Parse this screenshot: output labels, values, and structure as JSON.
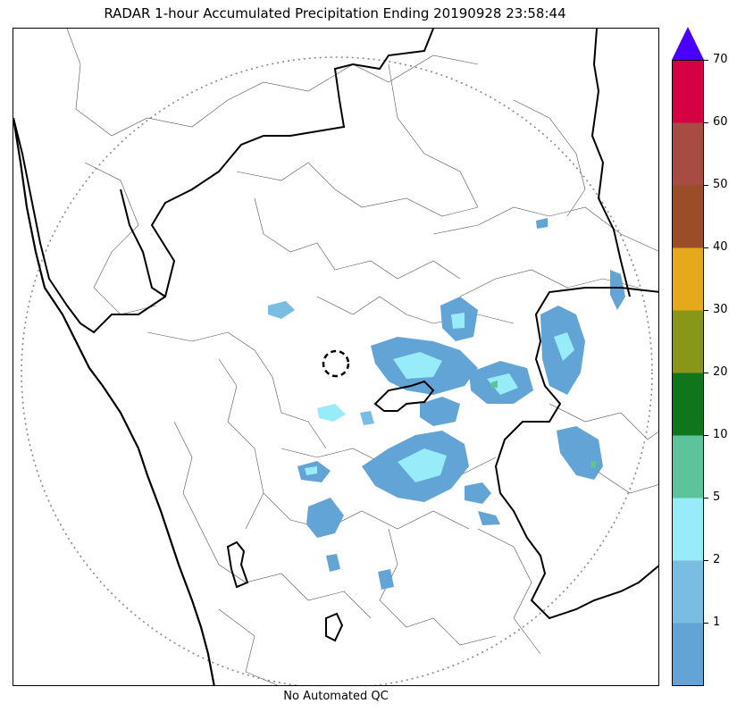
{
  "title": "RADAR 1-hour Accumulated Precipitation Ending 20190928 23:58:44",
  "footer": "No Automated QC",
  "colorbar": {
    "ticks": [
      "1",
      "2",
      "5",
      "10",
      "20",
      "30",
      "40",
      "50",
      "60",
      "70"
    ],
    "bins": [
      {
        "color": "#63a4d6"
      },
      {
        "color": "#79bde3"
      },
      {
        "color": "#98ecfa"
      },
      {
        "color": "#5cc39a"
      },
      {
        "color": "#10761c"
      },
      {
        "color": "#8a9618"
      },
      {
        "color": "#e7a91c"
      },
      {
        "color": "#9a4d27"
      },
      {
        "color": "#a84b43"
      },
      {
        "color": "#d60045"
      }
    ],
    "extend_color": "#4a00ff"
  },
  "map": {
    "background": "#ffffff",
    "coastline_color": "#000000",
    "border_color": "#000000",
    "district_color": "#4d4d4d",
    "range_ring_color": "#888888",
    "radar_marker_color": "#000000"
  }
}
